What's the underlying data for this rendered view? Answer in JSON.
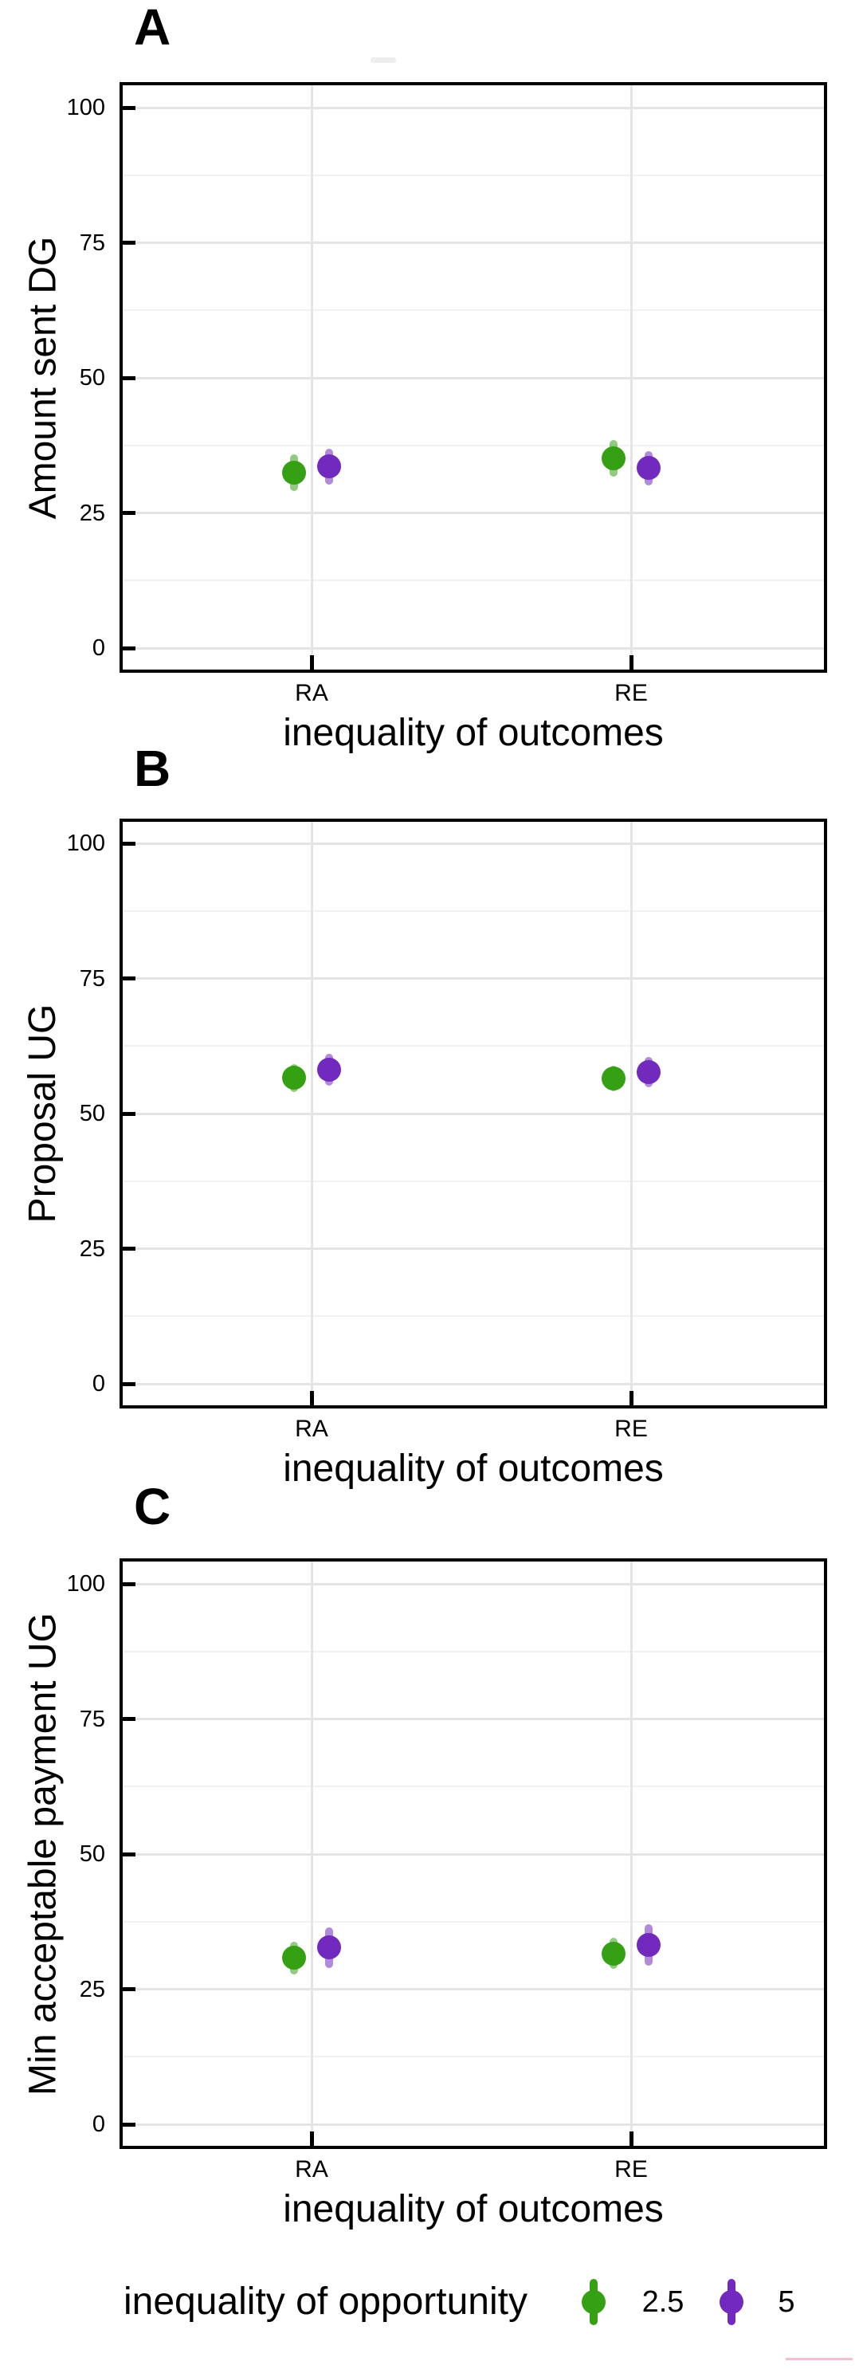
{
  "figure": {
    "background": "#ffffff",
    "axis_color": "#000000",
    "grid_major_color": "#e4e4e4",
    "grid_minor_color": "#f1f1f1",
    "green": "#36a015",
    "purple": "#7129be"
  },
  "legend": {
    "title": "inequality of opportunity",
    "items": [
      {
        "label": "2.5",
        "color": "#36a015"
      },
      {
        "label": "5",
        "color": "#7129be"
      }
    ]
  },
  "chart_data": [
    {
      "type": "pointrange",
      "label": "A",
      "ylabel": "Amount sent DG",
      "xlabel": "inequality of outcomes",
      "ylim": [
        0,
        100
      ],
      "yticks": [
        0,
        25,
        50,
        75,
        100
      ],
      "grid": "on",
      "categories": [
        "RA",
        "RE"
      ],
      "series": [
        {
          "name": "2.5",
          "color": "#36a015",
          "values": [
            32.4,
            35.1
          ],
          "errors": [
            3.4,
            3.4
          ]
        },
        {
          "name": "5",
          "color": "#7129be",
          "values": [
            33.6,
            33.3
          ],
          "errors": [
            3.3,
            3.2
          ]
        }
      ]
    },
    {
      "type": "pointrange",
      "label": "B",
      "ylabel": "Proposal UG",
      "xlabel": "inequality of outcomes",
      "ylim": [
        0,
        100
      ],
      "yticks": [
        0,
        25,
        50,
        75,
        100
      ],
      "grid": "on",
      "categories": [
        "RA",
        "RE"
      ],
      "series": [
        {
          "name": "2.5",
          "color": "#36a015",
          "values": [
            56.6,
            56.5
          ],
          "errors": [
            2.6,
            2.4
          ]
        },
        {
          "name": "5",
          "color": "#7129be",
          "values": [
            58.1,
            57.7
          ],
          "errors": [
            3.0,
            2.8
          ]
        }
      ]
    },
    {
      "type": "pointrange",
      "label": "C",
      "ylabel": "Min acceptable payment UG",
      "xlabel": "inequality of outcomes",
      "ylim": [
        0,
        100
      ],
      "yticks": [
        0,
        25,
        50,
        75,
        100
      ],
      "grid": "on",
      "categories": [
        "RA",
        "RE"
      ],
      "series": [
        {
          "name": "2.5",
          "color": "#36a015",
          "values": [
            30.8,
            31.6
          ],
          "errors": [
            3.0,
            2.9
          ]
        },
        {
          "name": "5",
          "color": "#7129be",
          "values": [
            32.7,
            33.2
          ],
          "errors": [
            3.8,
            3.8
          ]
        }
      ]
    }
  ]
}
